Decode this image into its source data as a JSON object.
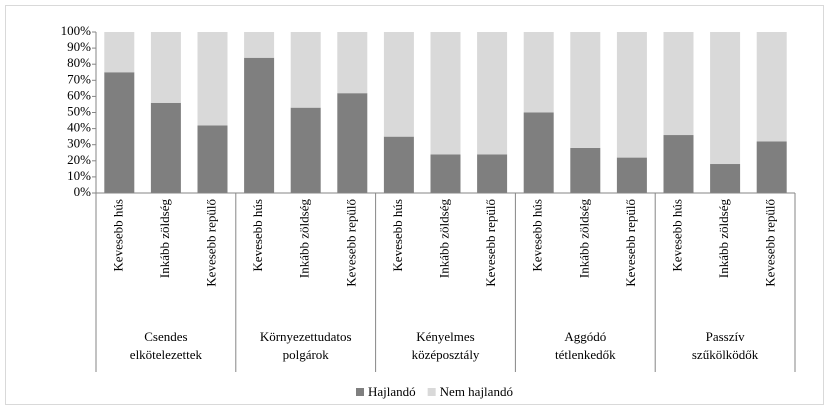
{
  "chart_data": {
    "type": "stacked_bar_100",
    "categories": [
      "Kevesebb hús",
      "Inkább zöldség",
      "Kevesebb repülő",
      "Kevesebb hús",
      "Inkább zöldség",
      "Kevesebb repülő",
      "Kevesebb hús",
      "Inkább zöldség",
      "Kevesebb repülő",
      "Kevesebb hús",
      "Inkább zöldség",
      "Kevesebb repülő",
      "Kevesebb hús",
      "Inkább zöldség",
      "Kevesebb repülő"
    ],
    "groups": [
      [
        "Csendes",
        "elkötelezettek"
      ],
      [
        "Környezettudatos",
        "polgárok"
      ],
      [
        "Kényelmes",
        "középosztály"
      ],
      [
        "Aggódó",
        "tétlenkedők"
      ],
      [
        "Passzív",
        "szűkölködők"
      ]
    ],
    "series": [
      {
        "name": "Hajlandó",
        "color": "#7f7f7f",
        "values": [
          75,
          56,
          42,
          84,
          53,
          62,
          35,
          24,
          24,
          50,
          28,
          22,
          36,
          18,
          32
        ]
      },
      {
        "name": "Nem hajlandó",
        "color": "#d9d9d9",
        "values": [
          25,
          44,
          58,
          16,
          47,
          38,
          65,
          76,
          76,
          50,
          72,
          78,
          64,
          82,
          68
        ]
      }
    ],
    "ylim": [
      0,
      100
    ],
    "yticks": [
      {
        "value": 0,
        "label": "0%"
      },
      {
        "value": 10,
        "label": "10%"
      },
      {
        "value": 20,
        "label": "20%"
      },
      {
        "value": 30,
        "label": "30%"
      },
      {
        "value": 40,
        "label": "40%"
      },
      {
        "value": 50,
        "label": "50%"
      },
      {
        "value": 60,
        "label": "60%"
      },
      {
        "value": 70,
        "label": "70%"
      },
      {
        "value": 80,
        "label": "80%"
      },
      {
        "value": 90,
        "label": "90%"
      },
      {
        "value": 100,
        "label": "100%"
      }
    ],
    "legend": "bottom"
  }
}
